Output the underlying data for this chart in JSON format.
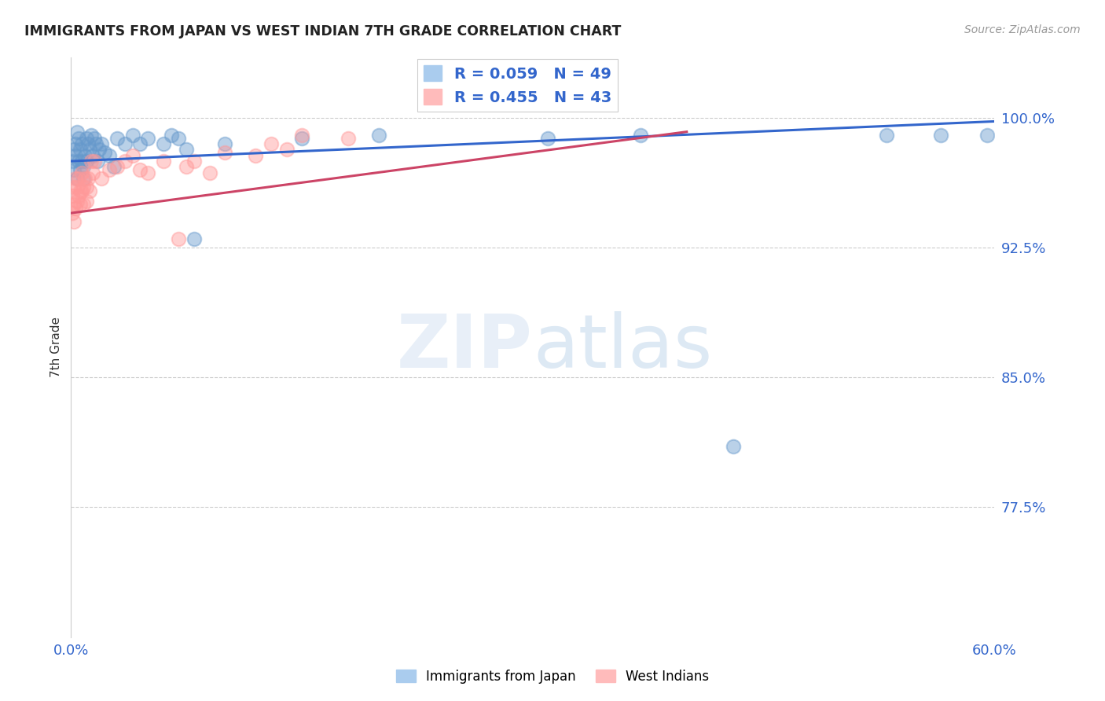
{
  "title": "IMMIGRANTS FROM JAPAN VS WEST INDIAN 7TH GRADE CORRELATION CHART",
  "source": "Source: ZipAtlas.com",
  "ylabel": "7th Grade",
  "ytick_labels": [
    "100.0%",
    "92.5%",
    "85.0%",
    "77.5%"
  ],
  "ytick_values": [
    1.0,
    0.925,
    0.85,
    0.775
  ],
  "xlim": [
    0.0,
    0.6
  ],
  "ylim": [
    0.7,
    1.035
  ],
  "legend_japan_R": "R = 0.059",
  "legend_japan_N": "N = 49",
  "legend_west_R": "R = 0.455",
  "legend_west_N": "N = 43",
  "japan_color": "#6699cc",
  "west_color": "#ff9999",
  "japan_line_color": "#3366cc",
  "west_line_color": "#cc4466",
  "background_color": "#ffffff",
  "watermark_zip": "ZIP",
  "watermark_atlas": "atlas",
  "japan_points_x": [
    0.001,
    0.002,
    0.002,
    0.003,
    0.003,
    0.004,
    0.004,
    0.005,
    0.005,
    0.006,
    0.006,
    0.007,
    0.007,
    0.008,
    0.008,
    0.009,
    0.01,
    0.01,
    0.011,
    0.012,
    0.013,
    0.014,
    0.015,
    0.016,
    0.017,
    0.018,
    0.02,
    0.022,
    0.025,
    0.028,
    0.03,
    0.035,
    0.04,
    0.045,
    0.05,
    0.06,
    0.065,
    0.07,
    0.075,
    0.08,
    0.1,
    0.15,
    0.2,
    0.31,
    0.37,
    0.43,
    0.53,
    0.565,
    0.595
  ],
  "japan_points_y": [
    0.975,
    0.982,
    0.97,
    0.985,
    0.978,
    0.992,
    0.965,
    0.988,
    0.975,
    0.982,
    0.97,
    0.985,
    0.975,
    0.972,
    0.965,
    0.978,
    0.975,
    0.988,
    0.985,
    0.982,
    0.99,
    0.978,
    0.988,
    0.985,
    0.975,
    0.982,
    0.985,
    0.98,
    0.978,
    0.972,
    0.988,
    0.985,
    0.99,
    0.985,
    0.988,
    0.985,
    0.99,
    0.988,
    0.982,
    0.93,
    0.985,
    0.988,
    0.99,
    0.988,
    0.99,
    0.81,
    0.99,
    0.99,
    0.99
  ],
  "west_points_x": [
    0.001,
    0.001,
    0.002,
    0.002,
    0.002,
    0.003,
    0.003,
    0.004,
    0.004,
    0.005,
    0.005,
    0.006,
    0.006,
    0.007,
    0.007,
    0.008,
    0.008,
    0.009,
    0.01,
    0.01,
    0.011,
    0.012,
    0.013,
    0.014,
    0.015,
    0.02,
    0.025,
    0.03,
    0.035,
    0.04,
    0.045,
    0.05,
    0.06,
    0.07,
    0.075,
    0.08,
    0.09,
    0.1,
    0.12,
    0.13,
    0.14,
    0.15,
    0.18
  ],
  "west_points_y": [
    0.955,
    0.945,
    0.96,
    0.95,
    0.94,
    0.965,
    0.948,
    0.96,
    0.952,
    0.965,
    0.955,
    0.958,
    0.95,
    0.968,
    0.958,
    0.96,
    0.95,
    0.965,
    0.96,
    0.952,
    0.965,
    0.958,
    0.975,
    0.968,
    0.975,
    0.965,
    0.97,
    0.972,
    0.975,
    0.978,
    0.97,
    0.968,
    0.975,
    0.93,
    0.972,
    0.975,
    0.968,
    0.98,
    0.978,
    0.985,
    0.982,
    0.99,
    0.988
  ],
  "japan_line_x": [
    0.0,
    0.6
  ],
  "japan_line_y": [
    0.975,
    0.998
  ],
  "west_line_x": [
    0.0,
    0.4
  ],
  "west_line_y": [
    0.945,
    0.992
  ]
}
